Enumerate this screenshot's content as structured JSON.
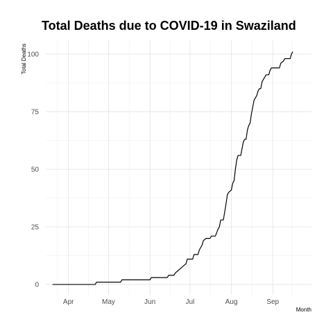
{
  "chart_data": {
    "type": "line",
    "title": "Total Deaths due to COVID-19 in Swaziland",
    "xlabel": "Month",
    "ylabel": "Total Deaths",
    "grid": true,
    "legend": "none",
    "xlim": [
      "2020-03-15",
      "2020-09-30"
    ],
    "ylim": [
      -4.5,
      106
    ],
    "x_ticks": [
      {
        "date": "2020-04-01",
        "label": "Apr"
      },
      {
        "date": "2020-05-01",
        "label": "May"
      },
      {
        "date": "2020-06-01",
        "label": "Jun"
      },
      {
        "date": "2020-07-01",
        "label": "Jul"
      },
      {
        "date": "2020-08-01",
        "label": "Aug"
      },
      {
        "date": "2020-09-01",
        "label": "Sep"
      }
    ],
    "y_ticks": [
      0,
      25,
      50,
      75,
      100
    ],
    "series": [
      {
        "color": "#000000",
        "points": [
          [
            "2020-03-20",
            0
          ],
          [
            "2020-04-21",
            0
          ],
          [
            "2020-04-22",
            1
          ],
          [
            "2020-05-10",
            1
          ],
          [
            "2020-05-11",
            2
          ],
          [
            "2020-06-01",
            2
          ],
          [
            "2020-06-02",
            3
          ],
          [
            "2020-06-14",
            3
          ],
          [
            "2020-06-15",
            4
          ],
          [
            "2020-06-19",
            4
          ],
          [
            "2020-06-20",
            5
          ],
          [
            "2020-06-22",
            6
          ],
          [
            "2020-06-24",
            7
          ],
          [
            "2020-06-26",
            8
          ],
          [
            "2020-06-28",
            9
          ],
          [
            "2020-06-29",
            11
          ],
          [
            "2020-07-03",
            11
          ],
          [
            "2020-07-04",
            13
          ],
          [
            "2020-07-07",
            13
          ],
          [
            "2020-07-08",
            15
          ],
          [
            "2020-07-10",
            17
          ],
          [
            "2020-07-11",
            19
          ],
          [
            "2020-07-13",
            20
          ],
          [
            "2020-07-16",
            20
          ],
          [
            "2020-07-17",
            21
          ],
          [
            "2020-07-20",
            21
          ],
          [
            "2020-07-22",
            24
          ],
          [
            "2020-07-23",
            25
          ],
          [
            "2020-07-24",
            28
          ],
          [
            "2020-07-26",
            28
          ],
          [
            "2020-07-28",
            35
          ],
          [
            "2020-07-29",
            39
          ],
          [
            "2020-07-30",
            40
          ],
          [
            "2020-08-01",
            41
          ],
          [
            "2020-08-02",
            44
          ],
          [
            "2020-08-03",
            45
          ],
          [
            "2020-08-04",
            50
          ],
          [
            "2020-08-05",
            54
          ],
          [
            "2020-08-06",
            56
          ],
          [
            "2020-08-08",
            56
          ],
          [
            "2020-08-09",
            59
          ],
          [
            "2020-08-10",
            62
          ],
          [
            "2020-08-11",
            63
          ],
          [
            "2020-08-12",
            63
          ],
          [
            "2020-08-13",
            67
          ],
          [
            "2020-08-14",
            69
          ],
          [
            "2020-08-15",
            70
          ],
          [
            "2020-08-16",
            74
          ],
          [
            "2020-08-17",
            77
          ],
          [
            "2020-08-18",
            80
          ],
          [
            "2020-08-19",
            81
          ],
          [
            "2020-08-20",
            82
          ],
          [
            "2020-08-21",
            84
          ],
          [
            "2020-08-22",
            85
          ],
          [
            "2020-08-23",
            85
          ],
          [
            "2020-08-24",
            88
          ],
          [
            "2020-08-25",
            89
          ],
          [
            "2020-08-26",
            90
          ],
          [
            "2020-08-27",
            91
          ],
          [
            "2020-08-29",
            91
          ],
          [
            "2020-08-30",
            93
          ],
          [
            "2020-08-31",
            94
          ],
          [
            "2020-09-06",
            94
          ],
          [
            "2020-09-07",
            96
          ],
          [
            "2020-09-09",
            97
          ],
          [
            "2020-09-10",
            98
          ],
          [
            "2020-09-14",
            98
          ],
          [
            "2020-09-15",
            100
          ],
          [
            "2020-09-16",
            101
          ]
        ]
      }
    ]
  }
}
